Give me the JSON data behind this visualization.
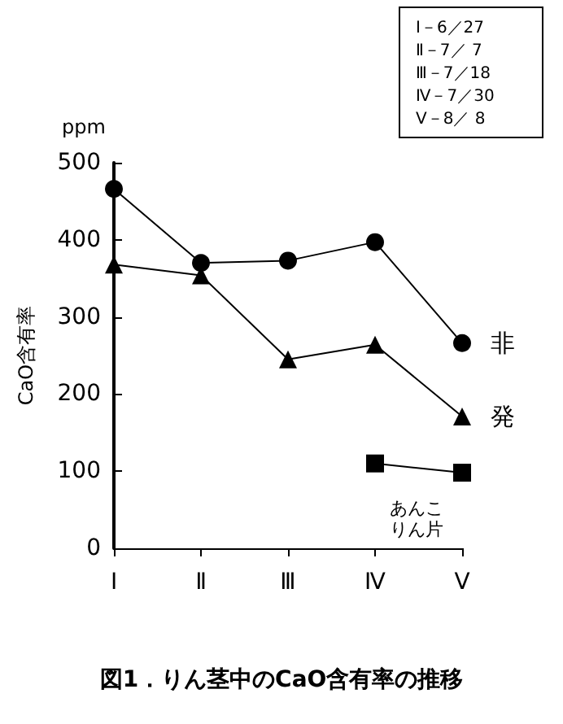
{
  "chart_data": {
    "type": "line",
    "title": "図1．りん茎中のCaO含有率の推移",
    "ylabel": "CaO含有率",
    "annotations": [
      "ppm",
      "Ⅰ－6／27\nⅡ－7／ 7\nⅢ－7／18\nⅣ－7／30\nⅤ－8／ 8"
    ],
    "categories": [
      "Ⅰ",
      "Ⅱ",
      "Ⅲ",
      "Ⅳ",
      "Ⅴ"
    ],
    "series": [
      {
        "name": "非",
        "color": "#000000",
        "marker": "circle",
        "values": [
          466,
          370,
          373,
          397,
          266
        ]
      },
      {
        "name": "発",
        "color": "#000000",
        "marker": "triangle",
        "values": [
          368,
          354,
          245,
          264,
          171
        ]
      },
      {
        "name": "あんこりん片",
        "color": "#000000",
        "marker": "square",
        "values": [
          null,
          null,
          null,
          110,
          98
        ]
      }
    ],
    "ylim": [
      0,
      500
    ],
    "yticks": [
      0,
      100,
      200,
      300,
      400,
      500
    ],
    "grid": false,
    "legend": false,
    "line_style": "solid"
  }
}
